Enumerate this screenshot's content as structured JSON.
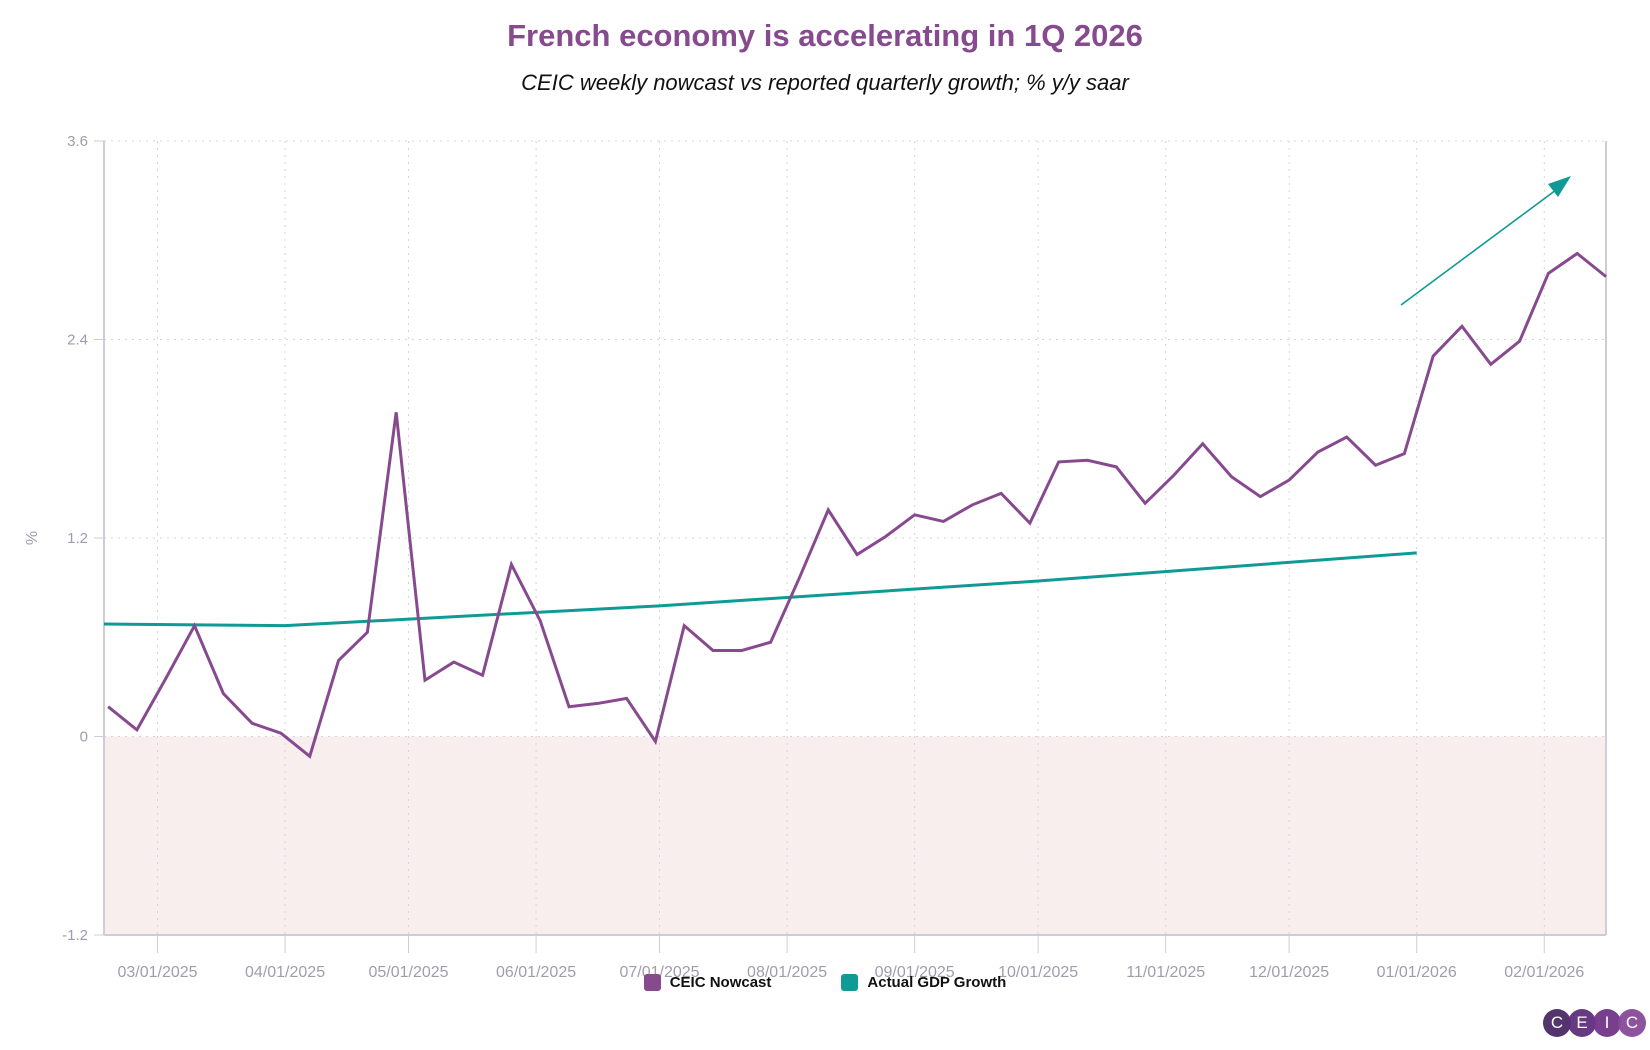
{
  "chart_data": {
    "type": "line",
    "title": "French economy is accelerating in 1Q 2026",
    "subtitle": "CEIC weekly nowcast vs reported quarterly growth; % y/y saar",
    "ylabel": "%",
    "xlabel": "",
    "ylim": [
      -1.2,
      3.6
    ],
    "yticks": [
      "3.6",
      "2.4",
      "1.2",
      "0",
      "-1.2"
    ],
    "ytick_values": [
      3.6,
      2.4,
      1.2,
      0,
      -1.2
    ],
    "xlim": [
      "2025-02-16",
      "2026-02-16"
    ],
    "xticks": [
      "03/01/2025",
      "04/01/2025",
      "05/01/2025",
      "06/01/2025",
      "07/01/2025",
      "08/01/2025",
      "09/01/2025",
      "10/01/2025",
      "11/01/2025",
      "12/01/2025",
      "01/01/2026",
      "02/01/2026"
    ],
    "xtick_dates": [
      "2025-03-01",
      "2025-04-01",
      "2025-05-01",
      "2025-06-01",
      "2025-07-01",
      "2025-08-01",
      "2025-09-01",
      "2025-10-01",
      "2025-11-01",
      "2025-12-01",
      "2026-01-01",
      "2026-02-01"
    ],
    "grid": true,
    "negative_region_shaded": true,
    "legend_position": "bottom",
    "series": [
      {
        "name": "CEIC Nowcast",
        "color": "#874a8f",
        "first_date": "2025-02-17",
        "frequency": "weekly",
        "values": [
          0.18,
          0.04,
          0.35,
          0.67,
          0.26,
          0.08,
          0.02,
          -0.12,
          0.46,
          0.63,
          1.96,
          0.34,
          0.45,
          0.37,
          1.04,
          0.7,
          0.18,
          0.2,
          0.23,
          -0.03,
          0.67,
          0.52,
          0.52,
          0.57,
          0.96,
          1.37,
          1.1,
          1.21,
          1.34,
          1.3,
          1.4,
          1.47,
          1.29,
          1.66,
          1.67,
          1.63,
          1.41,
          1.58,
          1.77,
          1.57,
          1.45,
          1.55,
          1.72,
          1.81,
          1.64,
          1.71,
          2.3,
          2.48,
          2.25,
          2.39,
          2.8,
          2.92,
          2.78
        ]
      },
      {
        "name": "Actual GDP Growth",
        "color": "#0f9a96",
        "dates": [
          "2025-02-16",
          "2025-04-01",
          "2025-07-01",
          "2025-10-01",
          "2026-01-01"
        ],
        "values": [
          0.68,
          0.67,
          0.79,
          0.94,
          1.11
        ]
      }
    ],
    "annotation": {
      "type": "arrow",
      "color": "#0f9a96",
      "meaning": "upward trend"
    }
  },
  "logo": {
    "letters": [
      "C",
      "E",
      "I",
      "C"
    ],
    "colors": [
      "#4a2a66",
      "#5e2f7c",
      "#72358a",
      "#874a9a"
    ]
  }
}
